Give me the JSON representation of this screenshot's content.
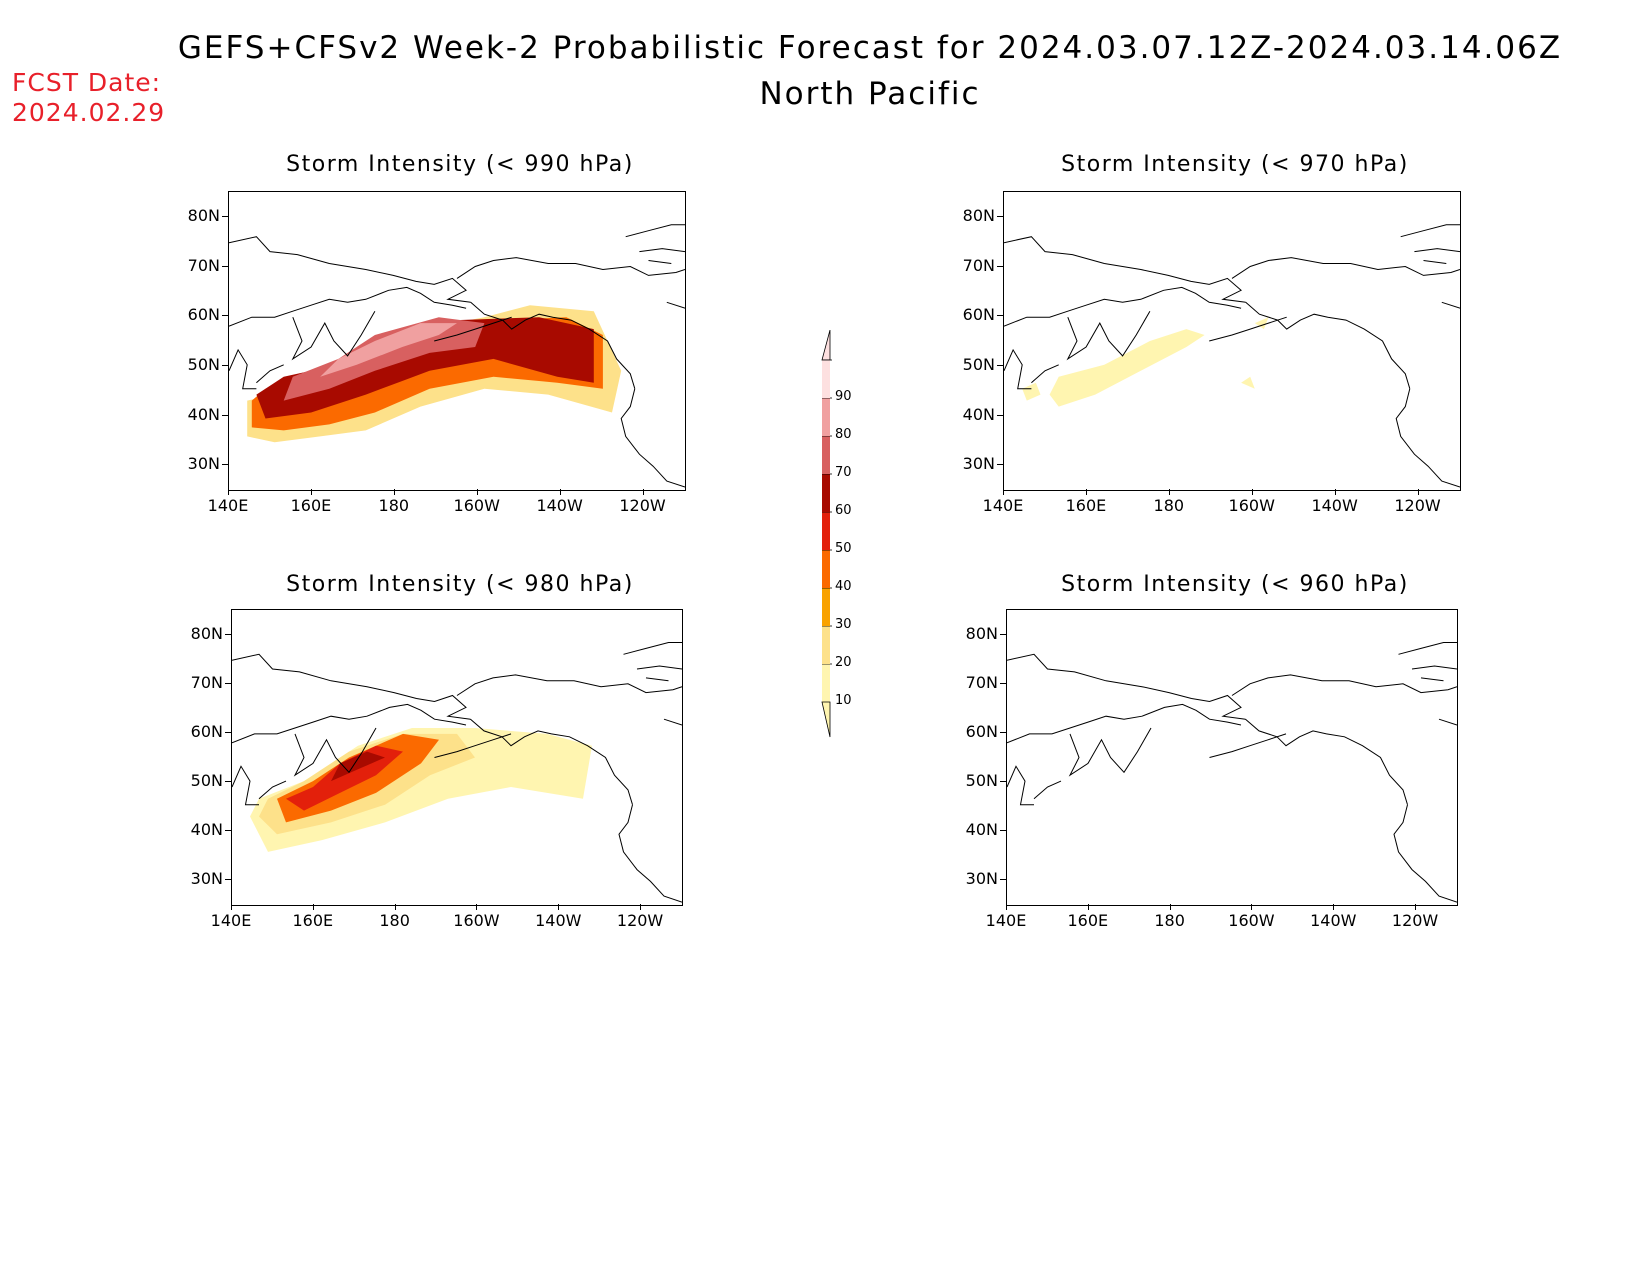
{
  "header": {
    "title": "GEFS+CFSv2 Week-2 Probabilistic Forecast for 2024.03.07.12Z-2024.03.14.06Z",
    "subtitle": "North Pacific",
    "fcst_label": "FCST Date:",
    "fcst_date": "2024.02.29",
    "fcst_color": "#e8202a"
  },
  "axes": {
    "lat_ticks": [
      "80N",
      "70N",
      "60N",
      "50N",
      "40N",
      "30N"
    ],
    "lon_ticks": [
      "140E",
      "160E",
      "180",
      "160W",
      "140W",
      "120W"
    ]
  },
  "panels": [
    {
      "id": "p990",
      "title": "Storm Intensity (< 990 hPa)",
      "intensity": "high"
    },
    {
      "id": "p970",
      "title": "Storm Intensity (< 970 hPa)",
      "intensity": "low"
    },
    {
      "id": "p980",
      "title": "Storm Intensity (< 980 hPa)",
      "intensity": "medium"
    },
    {
      "id": "p960",
      "title": "Storm Intensity (< 960 hPa)",
      "intensity": "none"
    }
  ],
  "legend": {
    "levels": [
      "10",
      "20",
      "30",
      "40",
      "50",
      "60",
      "70",
      "80",
      "90"
    ],
    "colors": [
      "#fff5b0",
      "#fde18a",
      "#f9a200",
      "#fb6a00",
      "#e3200b",
      "#a80a00",
      "#d86060",
      "#f0a0a0",
      "#fde0e0"
    ]
  }
}
